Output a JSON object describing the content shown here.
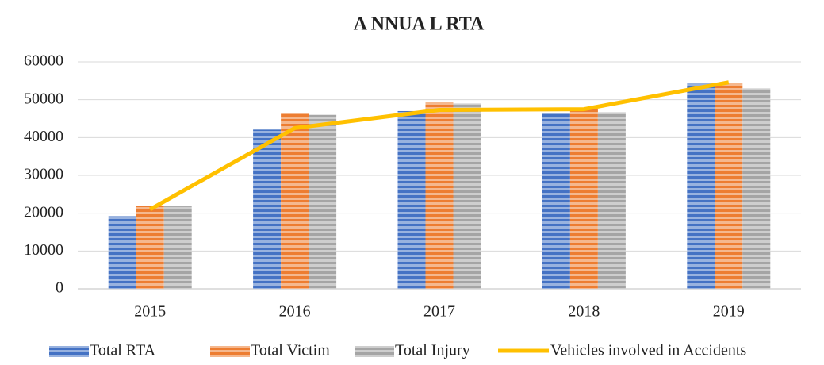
{
  "chart_data": {
    "type": "bar",
    "title": "A NNUA L RTA",
    "categories": [
      "2015",
      "2016",
      "2017",
      "2018",
      "2019"
    ],
    "series": [
      {
        "name": "Total RTA",
        "color": "#4472c4",
        "values": [
          19200,
          42100,
          47000,
          46500,
          54500
        ]
      },
      {
        "name": "Total Victim",
        "color": "#ed7d31",
        "values": [
          22000,
          46500,
          49500,
          47500,
          54500
        ]
      },
      {
        "name": "Total Injury",
        "color": "#a5a5a5",
        "values": [
          21800,
          46000,
          49000,
          46700,
          53000
        ]
      },
      {
        "name": "Vehicles involved in Accidents",
        "color": "#ffc000",
        "type": "line",
        "values": [
          21000,
          42500,
          47300,
          47500,
          54600
        ]
      }
    ],
    "ylim": [
      0,
      60000
    ],
    "yticks": [
      0,
      10000,
      20000,
      30000,
      40000,
      50000,
      60000
    ],
    "grid": true,
    "legend": "bottom"
  }
}
